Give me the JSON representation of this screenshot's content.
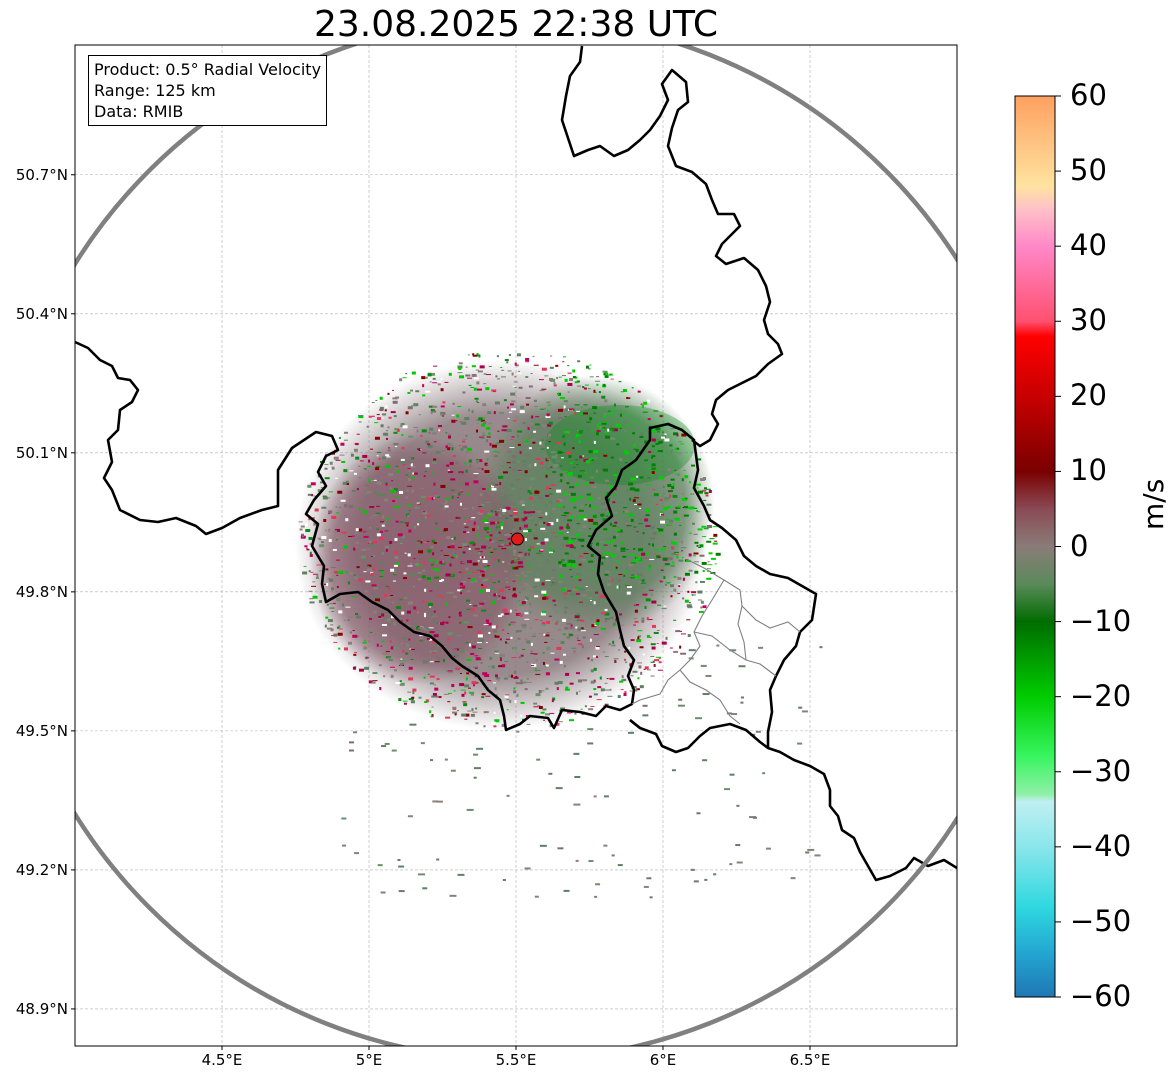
{
  "title": "23.08.2025 22:38 UTC",
  "info": {
    "product": "Product: 0.5° Radial Velocity",
    "range": "Range: 125 km",
    "data": "Data: RMIB"
  },
  "axes": {
    "lon_range": [
      4.0,
      7.0
    ],
    "lat_range": [
      48.82,
      50.98
    ],
    "x_ticks": [
      {
        "value": 4.5,
        "label": "4.5°E"
      },
      {
        "value": 5.0,
        "label": "5°E"
      },
      {
        "value": 5.5,
        "label": "5.5°E"
      },
      {
        "value": 6.0,
        "label": "6°E"
      },
      {
        "value": 6.5,
        "label": "6.5°E"
      }
    ],
    "y_ticks": [
      {
        "value": 50.7,
        "label": "50.7°N"
      },
      {
        "value": 50.4,
        "label": "50.4°N"
      },
      {
        "value": 50.1,
        "label": "50.1°N"
      },
      {
        "value": 49.8,
        "label": "49.8°N"
      },
      {
        "value": 49.5,
        "label": "49.5°N"
      },
      {
        "value": 49.2,
        "label": "49.2°N"
      },
      {
        "value": 48.9,
        "label": "48.9°N"
      }
    ],
    "grid": true
  },
  "radar": {
    "site_lon": 5.505,
    "site_lat": 49.914,
    "range_km": 125,
    "marker_color": "#e31a1c"
  },
  "colorbar": {
    "label": "m/s",
    "min": -60,
    "max": 60,
    "ticks": [
      {
        "value": 60,
        "label": "60"
      },
      {
        "value": 50,
        "label": "50"
      },
      {
        "value": 40,
        "label": "40"
      },
      {
        "value": 30,
        "label": "30"
      },
      {
        "value": 20,
        "label": "20"
      },
      {
        "value": 10,
        "label": "10"
      },
      {
        "value": 0,
        "label": "0"
      },
      {
        "value": -10,
        "label": "−10"
      },
      {
        "value": -20,
        "label": "−20"
      },
      {
        "value": -30,
        "label": "−30"
      },
      {
        "value": -40,
        "label": "−40"
      },
      {
        "value": -50,
        "label": "−50"
      },
      {
        "value": -60,
        "label": "−60"
      }
    ],
    "stops": [
      {
        "value": -60,
        "color": "#1f77b4"
      },
      {
        "value": -54,
        "color": "#23a7d2"
      },
      {
        "value": -48,
        "color": "#2fd8e0"
      },
      {
        "value": -40,
        "color": "#8ae6ea"
      },
      {
        "value": -34,
        "color": "#bfeff2"
      },
      {
        "value": -33,
        "color": "#90f0a8"
      },
      {
        "value": -28,
        "color": "#38f560"
      },
      {
        "value": -20,
        "color": "#00cc00"
      },
      {
        "value": -10,
        "color": "#006d00"
      },
      {
        "value": -5,
        "color": "#5a8a5a"
      },
      {
        "value": 0,
        "color": "#8a7c78"
      },
      {
        "value": 5,
        "color": "#8a4a55"
      },
      {
        "value": 10,
        "color": "#7a0000"
      },
      {
        "value": 20,
        "color": "#c80000"
      },
      {
        "value": 28,
        "color": "#ff0000"
      },
      {
        "value": 30,
        "color": "#ff5070"
      },
      {
        "value": 40,
        "color": "#ff88c8"
      },
      {
        "value": 45,
        "color": "#ffc2c8"
      },
      {
        "value": 48,
        "color": "#ffe3a0"
      },
      {
        "value": 60,
        "color": "#ffa060"
      }
    ]
  }
}
